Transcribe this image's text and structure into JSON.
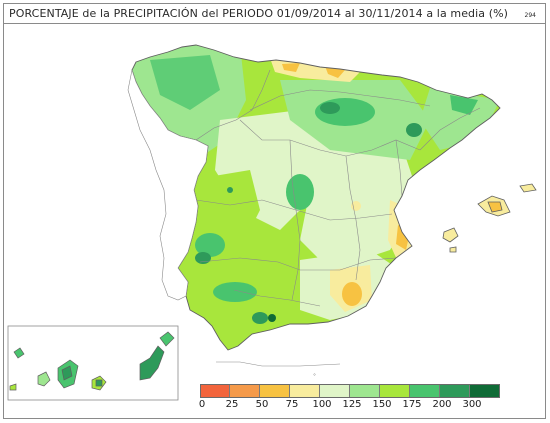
{
  "title": "PORCENTAJE de la PRECIPITACIÓN del PERIODO 01/09/2014 al 30/11/2014 a la media (%)",
  "map_code": "294",
  "legend": {
    "ticks": [
      "0",
      "25",
      "50",
      "75",
      "100",
      "125",
      "150",
      "175",
      "200",
      "300"
    ],
    "colors": [
      "#f2643c",
      "#f59a4a",
      "#f7c242",
      "#f8ec9e",
      "#e0f5c8",
      "#9ee690",
      "#a8e63c",
      "#49c46e",
      "#2e9a5a",
      "#0f6b36"
    ]
  },
  "colors": {
    "land_base": "#a8e63c",
    "border_lines": "#8a8a8a",
    "coast": "#5f5f5f"
  }
}
